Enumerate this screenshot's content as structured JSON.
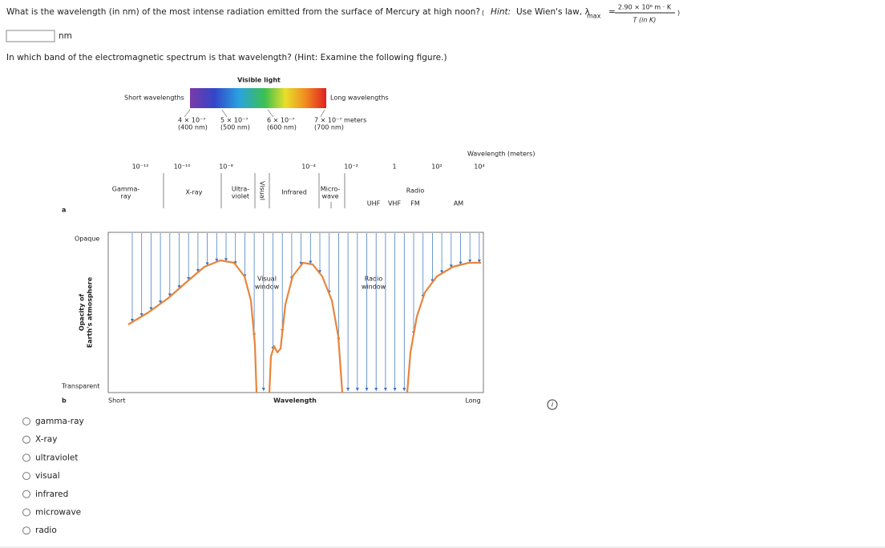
{
  "question": {
    "text": "What is the wavelength (in nm) of the most intense radiation emitted from the surface of Mercury at high noon?",
    "hint": {
      "label": "Hint:",
      "text": "Use Wien's law, λ",
      "subscript": "max",
      "equals": "=",
      "numerator": "2.90 × 10⁶ m · K",
      "denominator": "T (in K)"
    },
    "answer_unit": "nm"
  },
  "question2": {
    "text": "In which band of the electromagnetic spectrum is that wavelength? (Hint: Examine the following figure.)"
  },
  "figure": {
    "visible_light": "Visible light",
    "short_wavelengths": "Short wavelengths",
    "long_wavelengths": "Long wavelengths",
    "visible_ticks": [
      {
        "value": "4 × 10⁻⁷",
        "nm": "(400 nm)"
      },
      {
        "value": "5 × 10⁻⁷",
        "nm": "(500 nm)"
      },
      {
        "value": "6 × 10⁻⁷",
        "nm": "(600 nm)"
      },
      {
        "value": "7 × 10⁻⁷ meters",
        "nm": "(700 nm)"
      }
    ],
    "axis_title": "Wavelength (meters)",
    "ticks": [
      "10⁻¹²",
      "10⁻¹⁰",
      "10⁻⁸",
      "10⁻⁴",
      "10⁻²",
      "1",
      "10²",
      "10⁴"
    ],
    "bands": [
      [
        "Gamma-",
        "ray"
      ],
      [
        "X-ray"
      ],
      [
        "Ultra-",
        "violet"
      ],
      [
        "Infrared"
      ],
      [
        "Micro-",
        "wave"
      ],
      [
        "Radio"
      ]
    ],
    "visual_band": "Visual",
    "radio_sub": [
      "UHF",
      "VHF",
      "FM",
      "AM"
    ],
    "panel_a": "a",
    "panel_b": "b",
    "opaque": "Opaque",
    "transparent": "Transparent",
    "y_axis": [
      "Opacity of",
      "Earth's atmosphere"
    ],
    "short": "Short",
    "x_axis": "Wavelength",
    "long": "Long",
    "visual_window": [
      "Visual",
      "window"
    ],
    "radio_window": [
      "Radio",
      "window"
    ]
  },
  "options": [
    "gamma-ray",
    "X-ray",
    "ultraviolet",
    "visual",
    "infrared",
    "microwave",
    "radio"
  ]
}
